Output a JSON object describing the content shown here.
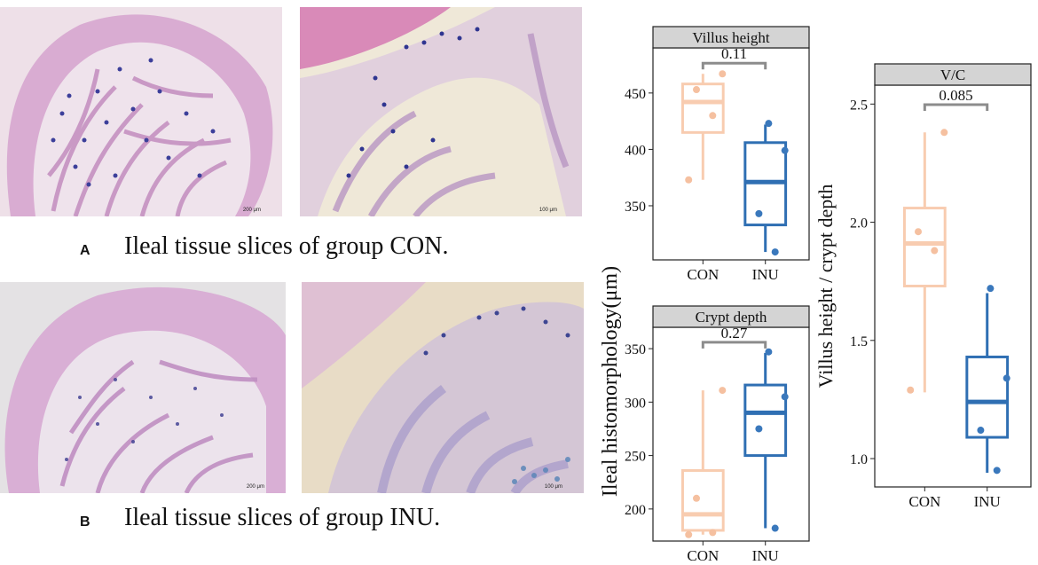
{
  "panels": {
    "a": {
      "letter": "A",
      "caption": "Ileal tissue slices of group CON.",
      "scale_left": "200 μm",
      "scale_right": "100 μm"
    },
    "b": {
      "letter": "B",
      "caption": "Ileal tissue slices of group INU.",
      "scale_left": "200 μm",
      "scale_right": "100 μm"
    }
  },
  "colors": {
    "con": "#f8ccb0",
    "inu": "#2f6fb3",
    "strip": "#d4d4d4",
    "bracket": "#8c8c8c",
    "tissue_pink": "#d8a9cf",
    "tissue_bg": "#ede4d4",
    "stain_blue": "#3c3f9a"
  },
  "shared_ylabel": "Ileal histomorphology(μm)",
  "chart_data": [
    {
      "type": "box",
      "title": "Villus height",
      "categories": [
        "CON",
        "INU"
      ],
      "ylim": [
        302,
        490
      ],
      "yticks": [
        350,
        400,
        450
      ],
      "pvalue": "0.11",
      "boxes": [
        {
          "name": "CON",
          "min": 373,
          "q1": 415,
          "median": 442,
          "q3": 458,
          "max": 467
        },
        {
          "name": "INU",
          "min": 309,
          "q1": 333,
          "median": 371,
          "q3": 406,
          "max": 422
        }
      ],
      "points": [
        {
          "group": "CON",
          "values": [
            373,
            430,
            453,
            467
          ]
        },
        {
          "group": "INU",
          "values": [
            309,
            343,
            399,
            423
          ]
        }
      ]
    },
    {
      "type": "box",
      "title": "Crypt depth",
      "categories": [
        "CON",
        "INU"
      ],
      "ylim": [
        170,
        370
      ],
      "yticks": [
        200,
        250,
        300,
        350
      ],
      "pvalue": "0.27",
      "boxes": [
        {
          "name": "CON",
          "min": 176,
          "q1": 180,
          "median": 195,
          "q3": 236,
          "max": 311
        },
        {
          "name": "INU",
          "min": 182,
          "q1": 250,
          "median": 290,
          "q3": 316,
          "max": 346
        }
      ],
      "points": [
        {
          "group": "CON",
          "values": [
            176,
            178,
            210,
            311
          ]
        },
        {
          "group": "INU",
          "values": [
            182,
            275,
            305,
            347
          ]
        }
      ]
    },
    {
      "type": "box",
      "title": "V/C",
      "categories": [
        "CON",
        "INU"
      ],
      "ylim": [
        0.88,
        2.58
      ],
      "yticks": [
        1.0,
        1.5,
        2.0,
        2.5
      ],
      "ytick_labels": [
        "1.0",
        "1.5",
        "2.0",
        "2.5"
      ],
      "ylabel": "Villus height / crypt depth",
      "pvalue": "0.085",
      "boxes": [
        {
          "name": "CON",
          "min": 1.28,
          "q1": 1.73,
          "median": 1.91,
          "q3": 2.06,
          "max": 2.38
        },
        {
          "name": "INU",
          "min": 0.94,
          "q1": 1.09,
          "median": 1.24,
          "q3": 1.43,
          "max": 1.7
        }
      ],
      "points": [
        {
          "group": "CON",
          "values": [
            1.29,
            1.88,
            1.96,
            2.38
          ]
        },
        {
          "group": "INU",
          "values": [
            0.95,
            1.12,
            1.34,
            1.72
          ]
        }
      ]
    }
  ]
}
